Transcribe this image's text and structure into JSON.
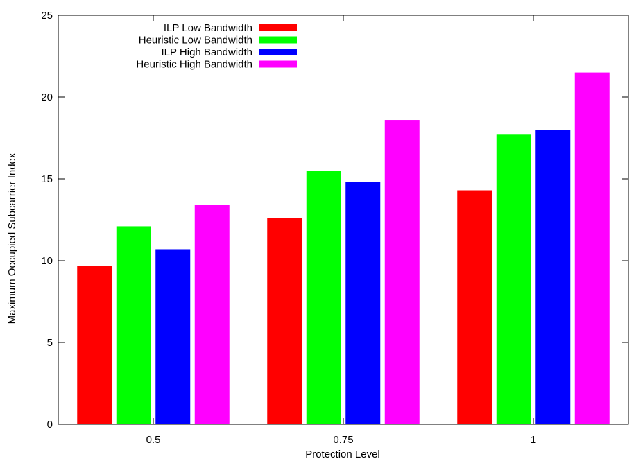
{
  "chart_data": {
    "type": "bar",
    "title": "",
    "xlabel": "Protection Level",
    "ylabel": "Maximum Occupied Subcarrier Index",
    "categories": [
      "0.5",
      "0.75",
      "1"
    ],
    "ylim": [
      0,
      25
    ],
    "yticks": [
      "0",
      "5",
      "10",
      "15",
      "20",
      "25"
    ],
    "grid": false,
    "legend_position": "top-left",
    "series": [
      {
        "name": "ILP Low Bandwidth",
        "color": "#ff0000",
        "values": [
          9.7,
          12.6,
          14.3
        ]
      },
      {
        "name": "Heuristic Low Bandwidth",
        "color": "#00ff00",
        "values": [
          12.1,
          15.5,
          17.7
        ]
      },
      {
        "name": "ILP High Bandwidth",
        "color": "#0000ff",
        "values": [
          10.7,
          14.8,
          18.0
        ]
      },
      {
        "name": "Heuristic High Bandwidth",
        "color": "#ff00ff",
        "values": [
          13.4,
          18.6,
          21.5
        ]
      }
    ]
  }
}
